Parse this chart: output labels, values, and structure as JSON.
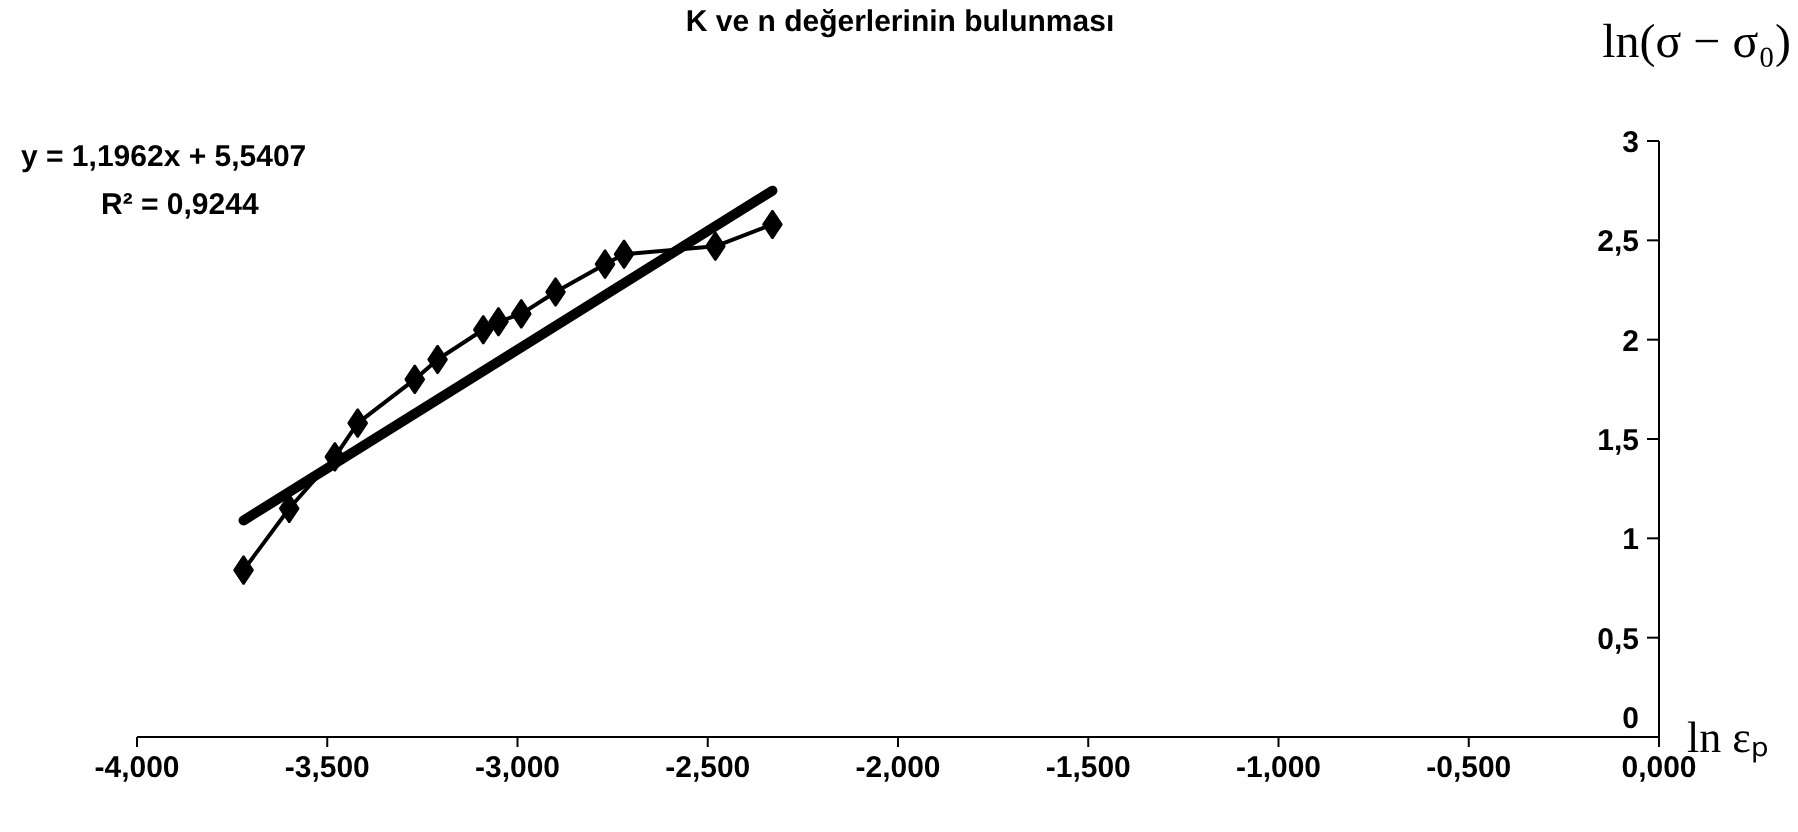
{
  "chart_data": {
    "type": "line",
    "title": "K ve n değerlerinin bulunması",
    "xlabel": "ln εₚ",
    "ylabel": "ln(σ − σ₀)",
    "annotations": [
      "y = 1,1962x + 5,5407",
      "R² = 0,9244"
    ],
    "x": [
      -3.72,
      -3.6,
      -3.48,
      -3.42,
      -3.27,
      -3.21,
      -3.09,
      -3.05,
      -2.99,
      -2.9,
      -2.77,
      -2.72,
      -2.48,
      -2.33
    ],
    "series": [
      {
        "color": "#000000",
        "marker": "diamond",
        "values": [
          0.84,
          1.15,
          1.41,
          1.58,
          1.8,
          1.9,
          2.05,
          2.09,
          2.13,
          2.24,
          2.38,
          2.43,
          2.47,
          2.58
        ]
      },
      {
        "type": "line",
        "color": "#000000",
        "marker": "none",
        "x": [
          -3.72,
          -2.33
        ],
        "values": [
          1.09,
          2.75
        ]
      }
    ],
    "xlim": [
      -4,
      0
    ],
    "ylim": [
      0,
      3
    ],
    "xticks": [
      {
        "value": -4,
        "label": "-4,000"
      },
      {
        "value": -3.5,
        "label": "-3,500"
      },
      {
        "value": -3,
        "label": "-3,000"
      },
      {
        "value": -2.5,
        "label": "-2,500"
      },
      {
        "value": -2,
        "label": "-2,000"
      },
      {
        "value": -1.5,
        "label": "-1,500"
      },
      {
        "value": -1,
        "label": "-1,000"
      },
      {
        "value": -0.5,
        "label": "-0,500"
      },
      {
        "value": 0,
        "label": "0,000"
      }
    ],
    "yticks": [
      0,
      {
        "value": 0.5,
        "label": "0,5"
      },
      1,
      {
        "value": 1.5,
        "label": "1,5"
      },
      2,
      {
        "value": 2.5,
        "label": "2,5"
      },
      3
    ]
  }
}
